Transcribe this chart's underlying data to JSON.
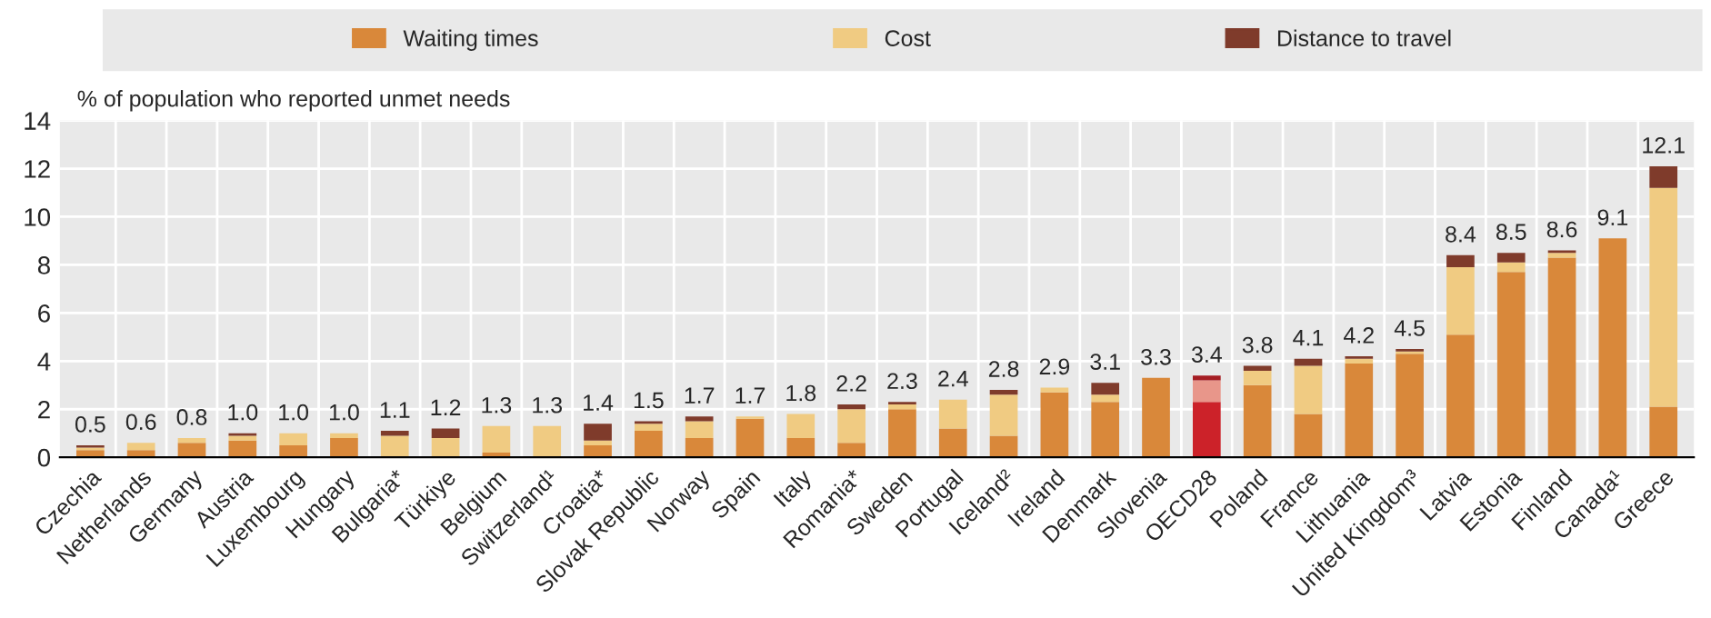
{
  "chart_data": {
    "type": "bar",
    "stacked": true,
    "ylabel": "% of population who reported unmet needs",
    "categories": [
      "Czechia",
      "Netherlands",
      "Germany",
      "Austria",
      "Luxembourg",
      "Hungary",
      "Bulgaria*",
      "Türkiye",
      "Belgium",
      "Switzerland¹",
      "Croatia*",
      "Slovak Republic",
      "Norway",
      "Spain",
      "Italy",
      "Romania*",
      "Sweden",
      "Portugal",
      "Iceland²",
      "Ireland",
      "Denmark",
      "Slovenia",
      "OECD28",
      "Poland",
      "France",
      "Lithuania",
      "United Kingdom³",
      "Latvia",
      "Estonia",
      "Finland",
      "Canada¹",
      "Greece"
    ],
    "series": [
      {
        "name": "Waiting times",
        "color": "#d9883a",
        "colors": [
          "#d9883a",
          "#d9883a",
          "#d9883a",
          "#d9883a",
          "#d9883a",
          "#d9883a",
          "#d9883a",
          "#d9883a",
          "#d9883a",
          "#d9883a",
          "#d9883a",
          "#d9883a",
          "#d9883a",
          "#d9883a",
          "#d9883a",
          "#d9883a",
          "#d9883a",
          "#d9883a",
          "#d9883a",
          "#d9883a",
          "#d9883a",
          "#d9883a",
          "#cc2229",
          "#d9883a",
          "#d9883a",
          "#d9883a",
          "#d9883a",
          "#d9883a",
          "#d9883a",
          "#d9883a",
          "#d9883a",
          "#d9883a"
        ],
        "values": [
          0.3,
          0.3,
          0.6,
          0.7,
          0.5,
          0.8,
          null,
          null,
          0.2,
          null,
          0.5,
          1.1,
          0.8,
          1.6,
          0.8,
          0.6,
          2.0,
          1.2,
          0.9,
          2.7,
          2.3,
          3.3,
          2.3,
          3.0,
          1.8,
          3.9,
          4.3,
          5.1,
          7.7,
          8.3,
          9.1,
          2.1
        ]
      },
      {
        "name": "Cost",
        "color": "#f0cb82",
        "colors": [
          "#f0cb82",
          "#f0cb82",
          "#f0cb82",
          "#f0cb82",
          "#f0cb82",
          "#f0cb82",
          "#f0cb82",
          "#f0cb82",
          "#f0cb82",
          "#f0cb82",
          "#f0cb82",
          "#f0cb82",
          "#f0cb82",
          "#f0cb82",
          "#f0cb82",
          "#f0cb82",
          "#f0cb82",
          "#f0cb82",
          "#f0cb82",
          "#f0cb82",
          "#f0cb82",
          "#f0cb82",
          "#e8968a",
          "#f0cb82",
          "#f0cb82",
          "#f0cb82",
          "#f0cb82",
          "#f0cb82",
          "#f0cb82",
          "#f0cb82",
          "#f0cb82",
          "#f0cb82"
        ],
        "values": [
          0.1,
          0.3,
          0.2,
          0.2,
          0.5,
          0.2,
          0.9,
          0.8,
          1.1,
          1.3,
          0.2,
          0.3,
          0.7,
          0.1,
          1.0,
          1.4,
          0.2,
          1.2,
          1.7,
          0.2,
          0.3,
          null,
          0.9,
          0.6,
          2.0,
          0.2,
          0.1,
          2.8,
          0.4,
          0.2,
          null,
          9.1
        ]
      },
      {
        "name": "Distance to travel",
        "color": "#7f3b2b",
        "colors": [
          "#7f3b2b",
          "#7f3b2b",
          "#7f3b2b",
          "#7f3b2b",
          "#7f3b2b",
          "#7f3b2b",
          "#7f3b2b",
          "#7f3b2b",
          "#7f3b2b",
          "#7f3b2b",
          "#7f3b2b",
          "#7f3b2b",
          "#7f3b2b",
          "#7f3b2b",
          "#7f3b2b",
          "#7f3b2b",
          "#7f3b2b",
          "#7f3b2b",
          "#7f3b2b",
          "#7f3b2b",
          "#7f3b2b",
          "#7f3b2b",
          "#a51d23",
          "#7f3b2b",
          "#7f3b2b",
          "#7f3b2b",
          "#7f3b2b",
          "#7f3b2b",
          "#7f3b2b",
          "#7f3b2b",
          "#7f3b2b",
          "#7f3b2b"
        ],
        "values": [
          0.1,
          null,
          null,
          0.1,
          null,
          null,
          0.2,
          0.4,
          null,
          null,
          0.7,
          0.1,
          0.2,
          null,
          null,
          0.2,
          0.1,
          null,
          0.2,
          null,
          0.5,
          null,
          0.2,
          0.2,
          0.3,
          0.1,
          0.1,
          0.5,
          0.4,
          0.1,
          null,
          0.9
        ]
      }
    ],
    "totals": [
      "0.5",
      "0.6",
      "0.8",
      "1.0",
      "1.0",
      "1.0",
      "1.1",
      "1.2",
      "1.3",
      "1.3",
      "1.4",
      "1.5",
      "1.7",
      "1.7",
      "1.8",
      "2.2",
      "2.3",
      "2.4",
      "2.8",
      "2.9",
      "3.1",
      "3.3",
      "3.4",
      "3.8",
      "4.1",
      "4.2",
      "4.5",
      "8.4",
      "8.5",
      "8.6",
      "9.1",
      "12.1"
    ],
    "ylim": [
      0,
      14
    ],
    "yticks": [
      0,
      2,
      4,
      6,
      8,
      10,
      12,
      14
    ],
    "grid": true,
    "legend": "top"
  }
}
